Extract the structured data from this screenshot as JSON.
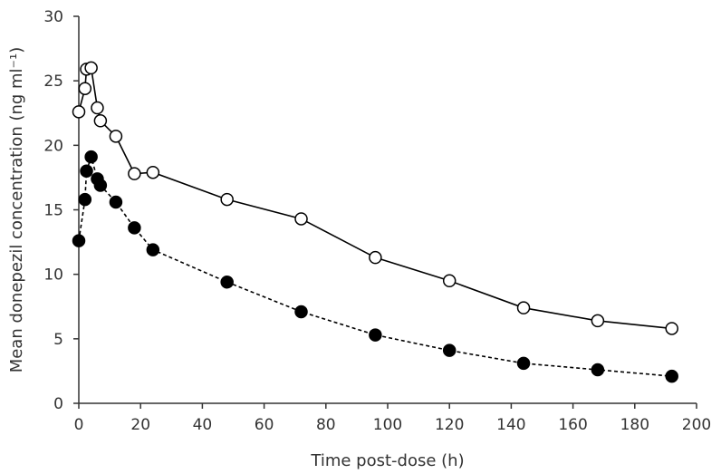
{
  "chart_data": {
    "type": "line",
    "title": "",
    "xlabel": "Time post-dose (h)",
    "ylabel": "Mean donepezil concentration (ng ml⁻¹)",
    "xlim": [
      0,
      200
    ],
    "ylim": [
      0,
      30
    ],
    "xticks": [
      0,
      20,
      40,
      60,
      80,
      100,
      120,
      140,
      160,
      180,
      200
    ],
    "yticks": [
      0,
      5,
      10,
      15,
      20,
      25,
      30
    ],
    "grid": false,
    "legend": "none",
    "series": [
      {
        "marker": "open-circle",
        "line_style": "solid",
        "color": "#000000",
        "x": [
          0,
          2,
          2.5,
          4,
          6,
          7,
          12,
          18,
          24,
          48,
          72,
          96,
          120,
          144,
          168,
          192
        ],
        "y": [
          22.6,
          24.4,
          25.9,
          26.0,
          22.9,
          21.9,
          20.7,
          17.8,
          17.9,
          15.8,
          14.3,
          11.3,
          9.5,
          7.4,
          6.4,
          5.8
        ]
      },
      {
        "marker": "filled-circle",
        "line_style": "dashed",
        "color": "#000000",
        "x": [
          0,
          2,
          2.5,
          4,
          6,
          7,
          12,
          18,
          24,
          48,
          72,
          96,
          120,
          144,
          168,
          192
        ],
        "y": [
          12.6,
          15.8,
          18.0,
          19.1,
          17.4,
          16.9,
          15.6,
          13.6,
          11.9,
          9.4,
          7.1,
          5.3,
          4.1,
          3.1,
          2.6,
          2.1
        ]
      }
    ]
  }
}
